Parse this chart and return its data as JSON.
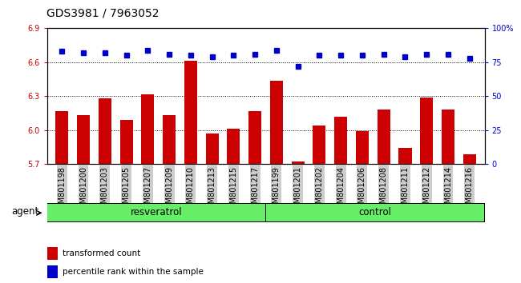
{
  "title": "GDS3981 / 7963052",
  "categories": [
    "GSM801198",
    "GSM801200",
    "GSM801203",
    "GSM801205",
    "GSM801207",
    "GSM801209",
    "GSM801210",
    "GSM801213",
    "GSM801215",
    "GSM801217",
    "GSM801199",
    "GSM801201",
    "GSM801202",
    "GSM801204",
    "GSM801206",
    "GSM801208",
    "GSM801211",
    "GSM801212",
    "GSM801214",
    "GSM801216"
  ],
  "bar_values": [
    6.17,
    6.13,
    6.28,
    6.09,
    6.32,
    6.13,
    6.61,
    5.97,
    6.01,
    6.17,
    6.44,
    5.72,
    6.04,
    6.12,
    5.99,
    6.18,
    5.84,
    6.29,
    6.18,
    5.79
  ],
  "dot_values": [
    83,
    82,
    82,
    80,
    84,
    81,
    80,
    79,
    80,
    81,
    84,
    72,
    80,
    80,
    80,
    81,
    79,
    81,
    81,
    78
  ],
  "bar_color": "#cc0000",
  "dot_color": "#0000cc",
  "ylim_left": [
    5.7,
    6.9
  ],
  "ylim_right": [
    0,
    100
  ],
  "yticks_left": [
    5.7,
    6.0,
    6.3,
    6.6,
    6.9
  ],
  "yticks_right": [
    0,
    25,
    50,
    75,
    100
  ],
  "ytick_labels_right": [
    "0",
    "25",
    "50",
    "75",
    "100%"
  ],
  "grid_values": [
    6.0,
    6.3,
    6.6
  ],
  "resveratrol_count": 10,
  "control_count": 10,
  "resveratrol_label": "resveratrol",
  "control_label": "control",
  "agent_label": "agent",
  "legend_bar_label": "transformed count",
  "legend_dot_label": "percentile rank within the sample",
  "group_bg_color": "#66ee66",
  "tick_bg_color": "#cccccc",
  "title_fontsize": 10,
  "tick_fontsize": 7,
  "group_fontsize": 8.5,
  "legend_fontsize": 7.5
}
